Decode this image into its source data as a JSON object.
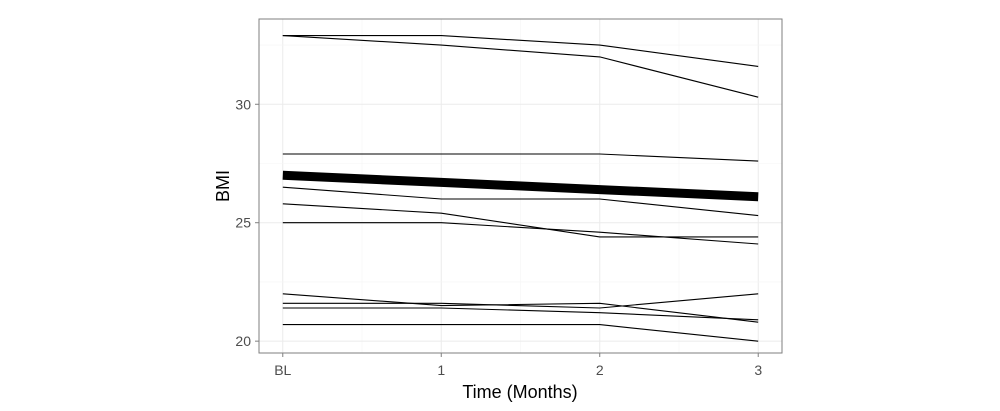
{
  "chart_data": {
    "type": "line",
    "title": "",
    "xlabel": "Time (Months)",
    "ylabel": "BMI",
    "x": [
      "BL",
      "1",
      "2",
      "3"
    ],
    "xlim": [
      -0.15,
      3.15
    ],
    "ylim": [
      19.5,
      33.6
    ],
    "yticks": [
      20,
      25,
      30
    ],
    "grid": true,
    "legend": "none",
    "colors": {
      "line": "#000000",
      "grid": "#ebebeb",
      "panel_border": "#7f7f7f"
    },
    "series": [
      {
        "values": [
          32.9,
          32.9,
          32.5,
          31.6
        ]
      },
      {
        "values": [
          32.9,
          32.5,
          32.0,
          30.3
        ]
      },
      {
        "values": [
          27.9,
          27.9,
          27.9,
          27.6
        ]
      },
      {
        "values": [
          27.0,
          26.7,
          26.4,
          26.1
        ],
        "emphasis": "mean"
      },
      {
        "values": [
          26.5,
          26.0,
          26.0,
          25.3
        ]
      },
      {
        "values": [
          25.8,
          25.4,
          24.4,
          24.4
        ]
      },
      {
        "values": [
          25.0,
          25.0,
          24.6,
          24.1
        ]
      },
      {
        "values": [
          22.0,
          21.5,
          21.6,
          20.8
        ]
      },
      {
        "values": [
          21.6,
          21.6,
          21.4,
          22.0
        ]
      },
      {
        "values": [
          21.4,
          21.4,
          21.2,
          20.9
        ]
      },
      {
        "values": [
          20.7,
          20.7,
          20.7,
          20.0
        ]
      }
    ]
  }
}
